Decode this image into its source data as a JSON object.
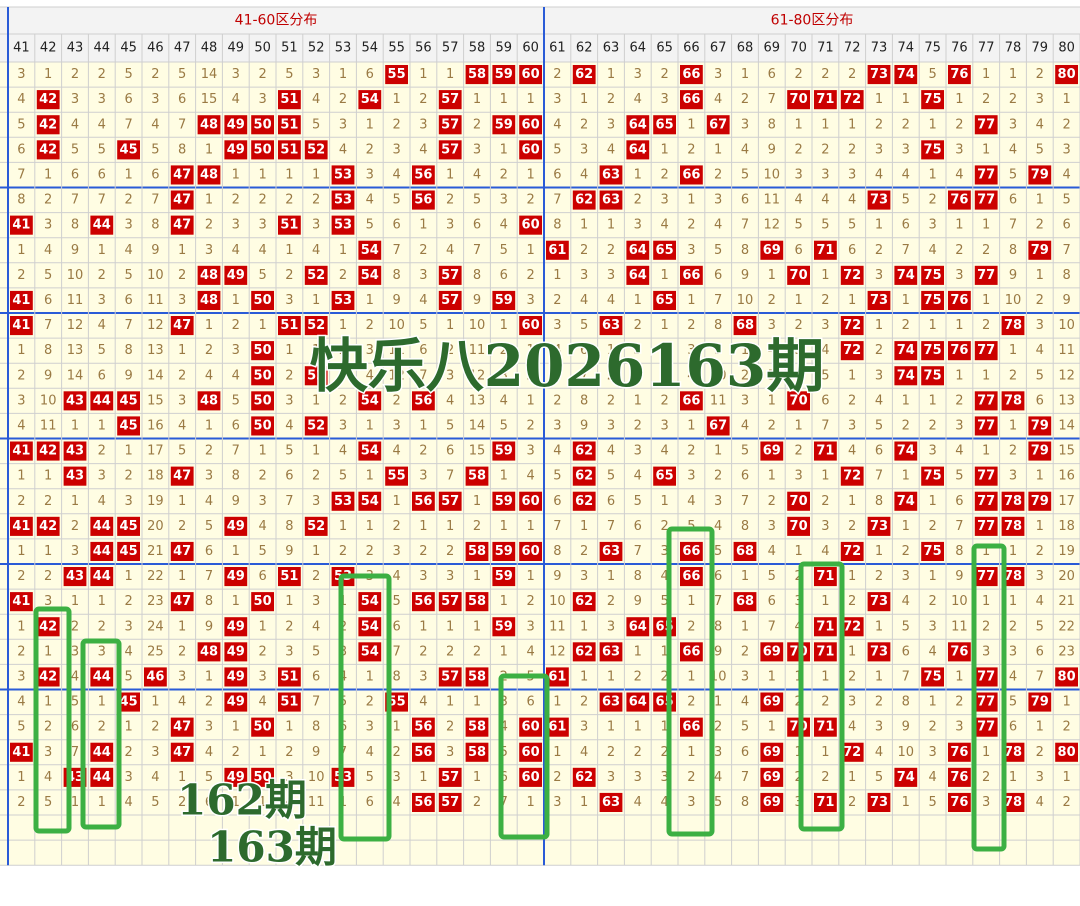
{
  "header": {
    "zones": [
      {
        "title": "41-60区分布"
      },
      {
        "title": "61-80区分布"
      }
    ]
  },
  "table": {
    "columns": [
      41,
      42,
      43,
      44,
      45,
      46,
      47,
      48,
      49,
      50,
      51,
      52,
      53,
      54,
      55,
      56,
      57,
      58,
      59,
      60,
      61,
      62,
      63,
      64,
      65,
      66,
      67,
      68,
      69,
      70,
      71,
      72,
      73,
      74,
      75,
      76,
      77,
      78,
      79,
      80
    ],
    "rows": [
      [
        3,
        1,
        2,
        2,
        5,
        2,
        5,
        14,
        3,
        2,
        5,
        3,
        1,
        6,
        55,
        1,
        1,
        58,
        59,
        60,
        2,
        62,
        1,
        3,
        2,
        66,
        3,
        1,
        6,
        2,
        2,
        2,
        73,
        74,
        5,
        76,
        1,
        1,
        2,
        80
      ],
      [
        4,
        42,
        3,
        3,
        6,
        3,
        6,
        15,
        4,
        3,
        51,
        4,
        2,
        54,
        1,
        2,
        57,
        1,
        1,
        1,
        3,
        1,
        2,
        4,
        3,
        66,
        4,
        2,
        7,
        70,
        71,
        72,
        1,
        1,
        75,
        1,
        2,
        2,
        3,
        1
      ],
      [
        5,
        42,
        4,
        4,
        7,
        4,
        7,
        48,
        49,
        50,
        51,
        5,
        3,
        1,
        2,
        3,
        57,
        2,
        59,
        60,
        4,
        2,
        3,
        64,
        65,
        1,
        67,
        3,
        8,
        1,
        1,
        1,
        2,
        2,
        1,
        2,
        77,
        3,
        4,
        2
      ],
      [
        6,
        42,
        5,
        5,
        45,
        5,
        8,
        1,
        49,
        50,
        51,
        52,
        4,
        2,
        3,
        4,
        57,
        3,
        1,
        60,
        5,
        3,
        4,
        64,
        1,
        2,
        1,
        4,
        9,
        2,
        2,
        2,
        3,
        3,
        75,
        3,
        1,
        4,
        5,
        3
      ],
      [
        7,
        1,
        6,
        6,
        1,
        6,
        47,
        48,
        1,
        1,
        1,
        1,
        53,
        3,
        4,
        56,
        1,
        4,
        2,
        1,
        6,
        4,
        63,
        1,
        2,
        66,
        2,
        5,
        10,
        3,
        3,
        3,
        4,
        4,
        1,
        4,
        77,
        5,
        79,
        4
      ],
      [
        8,
        2,
        7,
        7,
        2,
        7,
        47,
        1,
        2,
        2,
        2,
        2,
        53,
        4,
        5,
        56,
        2,
        5,
        3,
        2,
        7,
        62,
        63,
        2,
        3,
        1,
        3,
        6,
        11,
        4,
        4,
        4,
        73,
        5,
        2,
        76,
        77,
        6,
        1,
        5
      ],
      [
        41,
        3,
        8,
        44,
        3,
        8,
        47,
        2,
        3,
        3,
        51,
        3,
        53,
        5,
        6,
        1,
        3,
        6,
        4,
        60,
        8,
        1,
        1,
        3,
        4,
        2,
        4,
        7,
        12,
        5,
        5,
        5,
        1,
        6,
        3,
        1,
        1,
        7,
        2,
        6
      ],
      [
        1,
        4,
        9,
        1,
        4,
        9,
        1,
        3,
        4,
        4,
        1,
        4,
        1,
        54,
        7,
        2,
        4,
        7,
        5,
        1,
        61,
        2,
        2,
        64,
        65,
        3,
        5,
        8,
        69,
        6,
        71,
        6,
        2,
        7,
        4,
        2,
        2,
        8,
        79,
        7
      ],
      [
        2,
        5,
        10,
        2,
        5,
        10,
        2,
        48,
        49,
        5,
        2,
        52,
        2,
        54,
        8,
        3,
        57,
        8,
        6,
        2,
        1,
        3,
        3,
        64,
        1,
        66,
        6,
        9,
        1,
        70,
        1,
        72,
        3,
        74,
        75,
        3,
        77,
        9,
        1,
        8
      ],
      [
        41,
        6,
        11,
        3,
        6,
        11,
        3,
        48,
        1,
        50,
        3,
        1,
        53,
        1,
        9,
        4,
        57,
        9,
        59,
        3,
        2,
        4,
        4,
        1,
        65,
        1,
        7,
        10,
        2,
        1,
        2,
        1,
        73,
        1,
        75,
        76,
        1,
        10,
        2,
        9
      ],
      [
        41,
        7,
        12,
        4,
        7,
        12,
        47,
        1,
        2,
        1,
        51,
        52,
        1,
        2,
        10,
        5,
        1,
        10,
        1,
        60,
        3,
        5,
        63,
        2,
        1,
        2,
        8,
        68,
        3,
        2,
        3,
        72,
        1,
        2,
        1,
        1,
        2,
        78,
        3,
        10
      ],
      [
        1,
        8,
        13,
        5,
        8,
        13,
        1,
        2,
        3,
        50,
        1,
        1,
        2,
        3,
        11,
        6,
        2,
        11,
        2,
        1,
        4,
        6,
        1,
        3,
        2,
        3,
        9,
        1,
        4,
        3,
        4,
        72,
        2,
        74,
        75,
        76,
        77,
        1,
        4,
        11
      ],
      [
        2,
        9,
        14,
        6,
        9,
        14,
        2,
        4,
        4,
        50,
        2,
        52,
        3,
        4,
        12,
        7,
        3,
        12,
        3,
        2,
        5,
        7,
        2,
        4,
        3,
        4,
        10,
        2,
        5,
        4,
        5,
        1,
        3,
        74,
        75,
        1,
        1,
        2,
        5,
        12
      ],
      [
        3,
        10,
        43,
        44,
        45,
        15,
        3,
        48,
        5,
        50,
        3,
        1,
        2,
        54,
        2,
        56,
        4,
        13,
        4,
        1,
        2,
        8,
        2,
        1,
        2,
        66,
        11,
        3,
        1,
        70,
        6,
        2,
        4,
        1,
        1,
        2,
        77,
        78,
        6,
        13
      ],
      [
        4,
        11,
        1,
        1,
        45,
        16,
        4,
        1,
        6,
        50,
        4,
        52,
        3,
        1,
        3,
        1,
        5,
        14,
        5,
        2,
        3,
        9,
        3,
        2,
        3,
        1,
        67,
        4,
        2,
        1,
        7,
        3,
        5,
        2,
        2,
        3,
        77,
        1,
        79,
        14
      ],
      [
        41,
        42,
        43,
        2,
        1,
        17,
        5,
        2,
        7,
        1,
        5,
        1,
        4,
        54,
        4,
        2,
        6,
        15,
        59,
        3,
        4,
        62,
        4,
        3,
        4,
        2,
        1,
        5,
        69,
        2,
        71,
        4,
        6,
        74,
        3,
        4,
        1,
        2,
        79,
        15
      ],
      [
        1,
        1,
        43,
        3,
        2,
        18,
        47,
        3,
        8,
        2,
        6,
        2,
        5,
        1,
        55,
        3,
        7,
        58,
        1,
        4,
        5,
        62,
        5,
        4,
        65,
        3,
        2,
        6,
        1,
        3,
        1,
        72,
        7,
        1,
        75,
        5,
        77,
        3,
        1,
        16
      ],
      [
        2,
        2,
        1,
        4,
        3,
        19,
        1,
        4,
        9,
        3,
        7,
        3,
        53,
        54,
        1,
        56,
        57,
        1,
        59,
        60,
        6,
        62,
        6,
        5,
        1,
        4,
        3,
        7,
        2,
        70,
        2,
        1,
        8,
        74,
        1,
        6,
        77,
        78,
        79,
        17
      ],
      [
        41,
        42,
        2,
        44,
        45,
        20,
        2,
        5,
        49,
        4,
        8,
        52,
        1,
        1,
        2,
        1,
        1,
        2,
        1,
        1,
        7,
        1,
        7,
        6,
        2,
        5,
        4,
        8,
        3,
        70,
        3,
        2,
        73,
        1,
        2,
        7,
        77,
        78,
        1,
        18
      ],
      [
        1,
        1,
        3,
        44,
        45,
        21,
        47,
        6,
        1,
        5,
        9,
        1,
        2,
        2,
        3,
        2,
        2,
        58,
        59,
        60,
        8,
        2,
        63,
        7,
        3,
        66,
        5,
        68,
        4,
        1,
        4,
        72,
        1,
        2,
        75,
        8,
        1,
        1,
        2,
        19
      ],
      [
        2,
        2,
        43,
        44,
        1,
        22,
        1,
        7,
        49,
        6,
        51,
        2,
        53,
        3,
        4,
        3,
        3,
        1,
        59,
        1,
        9,
        3,
        1,
        8,
        4,
        66,
        6,
        1,
        5,
        2,
        71,
        1,
        2,
        3,
        1,
        9,
        77,
        78,
        3,
        20
      ],
      [
        41,
        3,
        1,
        1,
        2,
        23,
        47,
        8,
        1,
        50,
        1,
        3,
        1,
        54,
        5,
        56,
        57,
        58,
        1,
        2,
        10,
        62,
        2,
        9,
        5,
        1,
        7,
        68,
        6,
        3,
        1,
        2,
        73,
        4,
        2,
        10,
        1,
        1,
        4,
        21
      ],
      [
        1,
        42,
        2,
        2,
        3,
        24,
        1,
        9,
        49,
        1,
        2,
        4,
        2,
        54,
        6,
        1,
        1,
        1,
        59,
        3,
        11,
        1,
        3,
        64,
        65,
        2,
        8,
        1,
        7,
        4,
        71,
        72,
        1,
        5,
        3,
        11,
        2,
        2,
        5,
        22
      ],
      [
        2,
        1,
        3,
        3,
        4,
        25,
        2,
        48,
        49,
        2,
        3,
        5,
        3,
        54,
        7,
        2,
        2,
        2,
        1,
        4,
        12,
        62,
        63,
        1,
        1,
        66,
        9,
        2,
        69,
        70,
        71,
        1,
        73,
        6,
        4,
        76,
        3,
        3,
        6,
        23
      ],
      [
        3,
        42,
        4,
        44,
        5,
        46,
        3,
        1,
        49,
        3,
        51,
        6,
        4,
        1,
        8,
        3,
        57,
        58,
        2,
        5,
        61,
        1,
        1,
        2,
        2,
        1,
        10,
        3,
        1,
        1,
        1,
        2,
        1,
        7,
        75,
        1,
        77,
        4,
        7,
        80
      ],
      [
        4,
        1,
        5,
        1,
        45,
        1,
        4,
        2,
        49,
        4,
        51,
        7,
        5,
        2,
        55,
        4,
        1,
        1,
        3,
        6,
        1,
        2,
        63,
        64,
        65,
        2,
        1,
        4,
        69,
        2,
        2,
        3,
        2,
        8,
        1,
        2,
        77,
        5,
        79,
        1
      ],
      [
        5,
        2,
        6,
        2,
        1,
        2,
        47,
        3,
        1,
        50,
        1,
        8,
        6,
        3,
        1,
        56,
        2,
        58,
        4,
        60,
        61,
        3,
        1,
        1,
        1,
        66,
        2,
        5,
        1,
        70,
        71,
        4,
        3,
        9,
        2,
        3,
        77,
        6,
        1,
        2
      ],
      [
        41,
        3,
        7,
        44,
        2,
        3,
        47,
        4,
        2,
        1,
        2,
        9,
        7,
        4,
        2,
        56,
        3,
        58,
        5,
        60,
        1,
        4,
        2,
        2,
        2,
        1,
        3,
        6,
        69,
        1,
        1,
        72,
        4,
        10,
        3,
        76,
        1,
        78,
        2,
        80
      ],
      [
        1,
        4,
        43,
        44,
        3,
        4,
        1,
        5,
        49,
        50,
        3,
        10,
        53,
        5,
        3,
        1,
        57,
        1,
        6,
        60,
        2,
        62,
        3,
        3,
        3,
        2,
        4,
        7,
        69,
        2,
        2,
        1,
        5,
        74,
        4,
        76,
        2,
        1,
        3,
        1
      ],
      [
        2,
        5,
        1,
        1,
        4,
        5,
        2,
        6,
        1,
        1,
        4,
        11,
        1,
        6,
        4,
        56,
        57,
        2,
        7,
        1,
        3,
        1,
        63,
        4,
        4,
        3,
        5,
        8,
        69,
        3,
        71,
        2,
        73,
        1,
        5,
        76,
        3,
        78,
        4,
        2
      ]
    ]
  },
  "annotations": {
    "title": "快乐八2026163期",
    "labels": [
      "162期",
      "163期"
    ]
  }
}
